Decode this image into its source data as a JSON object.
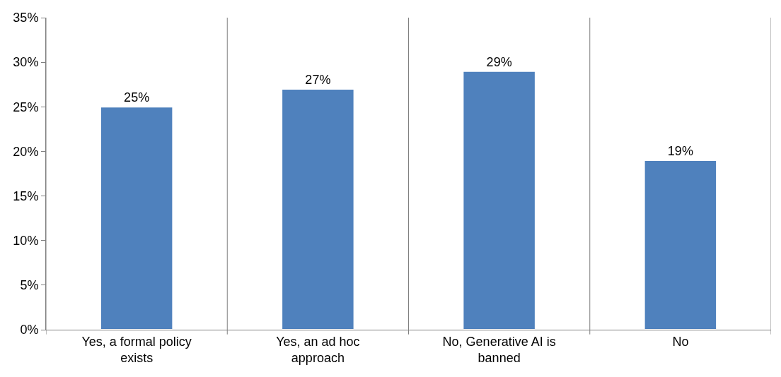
{
  "chart_data": {
    "type": "bar",
    "categories": [
      "Yes, a formal policy exists",
      "Yes, an ad hoc approach",
      "No, Generative AI is banned",
      "No"
    ],
    "values": [
      25,
      27,
      29,
      19
    ],
    "value_labels": [
      "25%",
      "27%",
      "29%",
      "19%"
    ],
    "color": "#4f81bd",
    "ylim": [
      0,
      35
    ],
    "yticks": [
      {
        "value": 0,
        "label": "0%"
      },
      {
        "value": 5,
        "label": "5%"
      },
      {
        "value": 10,
        "label": "10%"
      },
      {
        "value": 15,
        "label": "15%"
      },
      {
        "value": 20,
        "label": "20%"
      },
      {
        "value": 25,
        "label": "25%"
      },
      {
        "value": 30,
        "label": "30%"
      },
      {
        "value": 35,
        "label": "35%"
      }
    ],
    "grid": "x"
  }
}
